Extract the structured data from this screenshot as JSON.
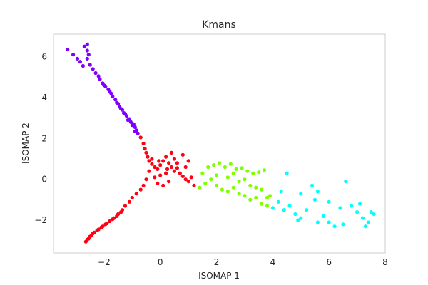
{
  "chart_data": {
    "type": "scatter",
    "title": "Kmans",
    "xlabel": "ISOMAP 1",
    "ylabel": "ISOMAP 2",
    "xlim": [
      -3.8,
      8.0
    ],
    "ylim": [
      -3.6,
      7.1
    ],
    "xticks": [
      -2,
      0,
      2,
      4,
      6,
      8
    ],
    "yticks": [
      -2,
      0,
      2,
      4,
      6
    ],
    "xtick_labels": [
      "−2",
      "0",
      "2",
      "4",
      "6",
      "8"
    ],
    "ytick_labels": [
      "−2",
      "0",
      "2",
      "4",
      "6"
    ],
    "grid": false,
    "series": [
      {
        "color": "#7f00ff",
        "points": [
          [
            -3.3,
            6.35
          ],
          [
            -3.1,
            6.1
          ],
          [
            -2.95,
            5.9
          ],
          [
            -2.85,
            5.75
          ],
          [
            -2.75,
            5.55
          ],
          [
            -2.7,
            6.5
          ],
          [
            -2.6,
            6.6
          ],
          [
            -2.6,
            6.3
          ],
          [
            -2.55,
            6.1
          ],
          [
            -2.6,
            5.9
          ],
          [
            -2.5,
            5.6
          ],
          [
            -2.4,
            5.4
          ],
          [
            -2.3,
            5.2
          ],
          [
            -2.2,
            5.05
          ],
          [
            -2.15,
            4.9
          ],
          [
            -2.05,
            4.7
          ],
          [
            -1.95,
            4.55
          ],
          [
            -1.85,
            4.4
          ],
          [
            -1.75,
            4.2
          ],
          [
            -1.7,
            4.05
          ],
          [
            -1.6,
            3.9
          ],
          [
            -1.5,
            3.7
          ],
          [
            -1.45,
            3.55
          ],
          [
            -1.35,
            3.4
          ],
          [
            -1.3,
            3.25
          ],
          [
            -1.2,
            3.1
          ],
          [
            -1.1,
            2.95
          ],
          [
            -1.05,
            2.8
          ],
          [
            -0.95,
            2.7
          ],
          [
            -0.9,
            2.55
          ],
          [
            -0.85,
            2.4
          ],
          [
            -0.8,
            2.25
          ],
          [
            -1.25,
            3.2
          ],
          [
            -1.15,
            2.9
          ],
          [
            -1.0,
            2.65
          ],
          [
            -0.9,
            2.35
          ],
          [
            -1.4,
            3.45
          ],
          [
            -1.55,
            3.75
          ],
          [
            -1.8,
            4.3
          ],
          [
            -2.0,
            4.6
          ]
        ]
      },
      {
        "color": "#ff0015",
        "points": [
          [
            -0.7,
            2.05
          ],
          [
            -0.6,
            1.75
          ],
          [
            -0.55,
            1.5
          ],
          [
            -0.5,
            1.3
          ],
          [
            -0.45,
            1.1
          ],
          [
            -0.4,
            0.9
          ],
          [
            -0.3,
            0.75
          ],
          [
            -0.2,
            0.6
          ],
          [
            -0.1,
            0.5
          ],
          [
            0.0,
            0.7
          ],
          [
            0.1,
            0.9
          ],
          [
            0.2,
            1.1
          ],
          [
            0.3,
            0.8
          ],
          [
            0.4,
            0.6
          ],
          [
            0.5,
            0.4
          ],
          [
            0.6,
            0.55
          ],
          [
            0.7,
            0.3
          ],
          [
            0.8,
            0.15
          ],
          [
            0.9,
            0.0
          ],
          [
            1.0,
            -0.1
          ],
          [
            1.1,
            0.1
          ],
          [
            0.5,
            1.0
          ],
          [
            0.8,
            1.2
          ],
          [
            1.0,
            0.9
          ],
          [
            0.2,
            0.3
          ],
          [
            0.0,
            0.2
          ],
          [
            -0.2,
            0.1
          ],
          [
            -0.1,
            -0.2
          ],
          [
            0.1,
            -0.3
          ],
          [
            0.3,
            -0.1
          ],
          [
            -0.5,
            0.0
          ],
          [
            -0.6,
            -0.3
          ],
          [
            -0.7,
            -0.5
          ],
          [
            -0.85,
            -0.7
          ],
          [
            -1.0,
            -0.9
          ],
          [
            -1.1,
            -1.1
          ],
          [
            -1.25,
            -1.3
          ],
          [
            -1.35,
            -1.5
          ],
          [
            -1.5,
            -1.7
          ],
          [
            -1.65,
            -1.9
          ],
          [
            -1.8,
            -2.05
          ],
          [
            -1.95,
            -2.2
          ],
          [
            -2.1,
            -2.35
          ],
          [
            -2.25,
            -2.5
          ],
          [
            -2.4,
            -2.65
          ],
          [
            -2.5,
            -2.8
          ],
          [
            -2.6,
            -2.95
          ],
          [
            -2.65,
            -3.05
          ],
          [
            -2.55,
            -2.9
          ],
          [
            -2.45,
            -2.75
          ],
          [
            -2.35,
            -2.6
          ],
          [
            -2.2,
            -2.45
          ],
          [
            -2.05,
            -2.3
          ],
          [
            -1.9,
            -2.15
          ],
          [
            -1.7,
            -1.95
          ],
          [
            -1.55,
            -1.8
          ],
          [
            -1.4,
            -1.6
          ],
          [
            -0.4,
            0.4
          ],
          [
            -0.3,
            1.0
          ],
          [
            0.4,
            1.3
          ],
          [
            0.25,
            0.5
          ],
          [
            -0.05,
            0.9
          ],
          [
            0.6,
            0.8
          ],
          [
            0.9,
            0.6
          ],
          [
            1.2,
            -0.3
          ]
        ]
      },
      {
        "color": "#80ff00",
        "points": [
          [
            1.4,
            -0.4
          ],
          [
            1.6,
            -0.2
          ],
          [
            1.8,
            0.0
          ],
          [
            2.0,
            -0.3
          ],
          [
            2.2,
            -0.5
          ],
          [
            2.4,
            -0.6
          ],
          [
            2.6,
            -0.4
          ],
          [
            2.8,
            -0.7
          ],
          [
            3.0,
            -0.8
          ],
          [
            3.2,
            -1.0
          ],
          [
            3.4,
            -0.9
          ],
          [
            3.6,
            -1.2
          ],
          [
            3.8,
            -1.3
          ],
          [
            1.7,
            0.6
          ],
          [
            1.9,
            0.7
          ],
          [
            2.1,
            0.8
          ],
          [
            2.3,
            0.6
          ],
          [
            2.5,
            0.75
          ],
          [
            2.7,
            0.5
          ],
          [
            2.9,
            0.55
          ],
          [
            3.1,
            0.4
          ],
          [
            3.3,
            0.3
          ],
          [
            3.5,
            0.35
          ],
          [
            3.7,
            0.45
          ],
          [
            2.0,
            0.2
          ],
          [
            2.4,
            0.1
          ],
          [
            2.8,
            -0.1
          ],
          [
            3.2,
            -0.3
          ],
          [
            3.6,
            -0.5
          ],
          [
            3.9,
            -0.8
          ],
          [
            1.5,
            0.3
          ],
          [
            2.6,
            0.3
          ],
          [
            3.0,
            0.0
          ],
          [
            3.4,
            -0.4
          ],
          [
            3.8,
            -0.9
          ]
        ]
      },
      {
        "color": "#00ffff",
        "points": [
          [
            4.0,
            -1.4
          ],
          [
            4.2,
            -1.1
          ],
          [
            4.4,
            -1.5
          ],
          [
            4.6,
            -1.3
          ],
          [
            4.8,
            -1.7
          ],
          [
            5.0,
            -1.9
          ],
          [
            5.2,
            -1.5
          ],
          [
            5.4,
            -0.3
          ],
          [
            5.6,
            -0.6
          ],
          [
            5.8,
            -1.8
          ],
          [
            6.0,
            -2.1
          ],
          [
            6.2,
            -2.3
          ],
          [
            6.4,
            -1.4
          ],
          [
            6.6,
            -0.1
          ],
          [
            6.8,
            -1.3
          ],
          [
            7.0,
            -1.6
          ],
          [
            7.2,
            -1.9
          ],
          [
            7.4,
            -2.1
          ],
          [
            7.6,
            -1.7
          ],
          [
            7.5,
            -1.6
          ],
          [
            4.5,
            0.3
          ],
          [
            5.0,
            -0.7
          ],
          [
            5.5,
            -1.0
          ],
          [
            6.0,
            -1.1
          ],
          [
            6.5,
            -2.2
          ],
          [
            7.1,
            -1.2
          ],
          [
            4.3,
            -0.6
          ],
          [
            4.9,
            -2.0
          ],
          [
            5.6,
            -2.1
          ],
          [
            7.3,
            -2.3
          ]
        ]
      }
    ]
  }
}
